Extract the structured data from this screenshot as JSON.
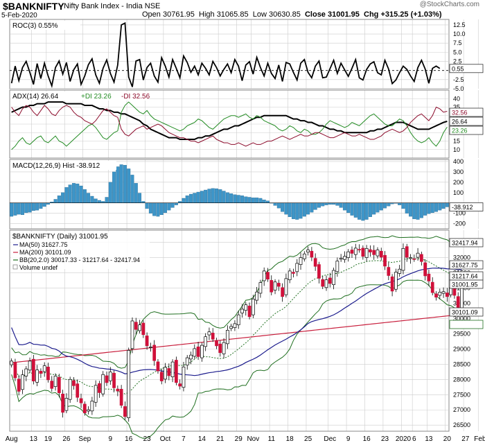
{
  "header": {
    "ticker": "$BANKNIFTY",
    "exchange": "Nifty Bank Index - India NSE",
    "date": "5-Feb-2020",
    "open_label": "Open",
    "open": "30761.95",
    "high_label": "High",
    "high": "31065.85",
    "low_label": "Low",
    "low": "30630.85",
    "close_label": "Close",
    "close": "31001.95",
    "chg_label": "Chg",
    "chg": "+315.25 (+1.03%)",
    "watermark": "@StockCharts.com"
  },
  "colors": {
    "roc": "#000000",
    "adx": "#000000",
    "plus_di": "#228B22",
    "minus_di": "#8B0A2A",
    "hist": "#3D95C8",
    "ma50": "#1A1A8C",
    "ma200": "#C81E3C",
    "bb": "#1E6E1E",
    "candle_up": "#ffffff",
    "candle_down": "#D0103A",
    "grid": "#cccccc",
    "highlight": "#1E6E1E"
  },
  "chart_data": [
    {
      "type": "line",
      "panel": "ROC",
      "title": "ROC(3) 0.55%",
      "ylim": [
        -5,
        14
      ],
      "yticks": [
        "12.5",
        "10.0",
        "7.5",
        "5.0",
        "2.5",
        "-2.5",
        "-5.0"
      ],
      "last_value_label": "0.55",
      "zero_line": true,
      "values": [
        -3.5,
        1.2,
        -2.8,
        0.8,
        2.5,
        -0.5,
        -3.8,
        1.9,
        -2.2,
        2.0,
        -1.5,
        -4.2,
        0.8,
        2.6,
        -1.0,
        2.2,
        -3.0,
        0.2,
        1.8,
        -3.8,
        -1.5,
        1.6,
        3.2,
        -1.2,
        -3.5,
        0.6,
        2.9,
        -0.8,
        -3.2,
        1.5,
        12.5,
        13.0,
        -1.8,
        -4.5,
        2.6,
        3.0,
        -2.6,
        0.8,
        2.0,
        -1.5,
        -3.2,
        3.5,
        1.2,
        -1.8,
        3.0,
        0.6,
        -2.0,
        4.0,
        2.2,
        -0.5,
        1.2,
        -1.2,
        2.0,
        0.6,
        -1.2,
        2.5,
        0.8,
        -1.5,
        0.3,
        1.8,
        -0.6,
        3.0,
        1.2,
        -2.8,
        1.5,
        2.4,
        -1.0,
        3.6,
        0.8,
        -1.5,
        2.0,
        -0.8,
        -2.2,
        1.5,
        -3.0,
        2.2,
        1.8,
        -0.5,
        -2.6,
        2.0,
        3.0,
        -0.5,
        -2.0,
        1.2,
        2.6,
        -2.0,
        -1.8,
        0.5,
        2.8,
        -0.8,
        2.0,
        0.2,
        -1.6,
        0.6,
        3.0,
        -2.0,
        -2.6,
        0.3,
        1.8,
        2.4,
        -0.6,
        -1.2,
        2.8,
        0.4,
        -3.6,
        -2.6,
        -0.6,
        1.2,
        0.3,
        -1.5,
        -3.0,
        0.8,
        2.8,
        0.4,
        -3.5,
        0.6,
        1.2,
        0.55
      ]
    },
    {
      "type": "line",
      "panel": "ADX",
      "title_adx": "ADX(14) 26.64",
      "title_plus": "+DI 23.26",
      "title_minus": "-DI 32.56",
      "ylim": [
        5,
        45
      ],
      "yticks": [
        "40",
        "35",
        "30",
        "25",
        "20",
        "15",
        "10"
      ],
      "last_labels": [
        "32.56",
        "26.64",
        "23.26"
      ],
      "series": [
        {
          "name": "ADX",
          "values": [
            32,
            33,
            34,
            35,
            35,
            36,
            36,
            37,
            37,
            37,
            38,
            38,
            38,
            38,
            38,
            37,
            37,
            37,
            37,
            37,
            36,
            36,
            36,
            35,
            34,
            34,
            33,
            33,
            32,
            32,
            31,
            31,
            30,
            29,
            28,
            27,
            25,
            24,
            22,
            21,
            20,
            19,
            18,
            17,
            17,
            17,
            16,
            16,
            16,
            16,
            16,
            17,
            17,
            18,
            18,
            19,
            20,
            21,
            22,
            22,
            23,
            24,
            24,
            25,
            26,
            27,
            28,
            29,
            29,
            30,
            30,
            30,
            30,
            30,
            30,
            30,
            29,
            28,
            28,
            27,
            27,
            26,
            26,
            25,
            24,
            24,
            23,
            22,
            22,
            21,
            21,
            20,
            20,
            20,
            20,
            20,
            20,
            20,
            21,
            21,
            22,
            22,
            23,
            24,
            25,
            26,
            26,
            26,
            25,
            24,
            23,
            22,
            22,
            22,
            22,
            23,
            24,
            25,
            26,
            26.64
          ]
        },
        {
          "name": "+DI",
          "values": [
            10,
            12,
            15,
            17,
            14,
            13,
            15,
            17,
            18,
            15,
            14,
            16,
            18,
            15,
            14,
            12,
            14,
            16,
            18,
            20,
            22,
            24,
            25,
            23,
            20,
            17,
            16,
            18,
            20,
            21,
            32,
            36,
            38,
            36,
            34,
            32,
            31,
            33,
            30,
            28,
            27,
            26,
            25,
            24,
            23,
            22,
            21,
            22,
            24,
            25,
            26,
            28,
            27,
            25,
            23,
            22,
            24,
            26,
            28,
            29,
            30,
            30,
            29,
            30,
            31,
            29,
            28,
            30,
            29,
            27,
            26,
            25,
            24,
            22,
            21,
            22,
            24,
            23,
            21,
            20,
            22,
            21,
            19,
            19,
            20,
            22,
            25,
            27,
            26,
            25,
            24,
            23,
            24,
            26,
            25,
            24,
            26,
            28,
            30,
            31,
            29,
            27,
            25,
            24,
            24,
            26,
            28,
            27,
            24,
            20,
            17,
            15,
            14,
            15,
            17,
            14,
            12,
            15,
            20,
            23.26
          ]
        },
        {
          "name": "-DI",
          "values": [
            35,
            32,
            30,
            34,
            36,
            35,
            32,
            30,
            33,
            36,
            34,
            31,
            30,
            33,
            35,
            36,
            35,
            32,
            30,
            29,
            27,
            26,
            25,
            27,
            30,
            33,
            34,
            32,
            30,
            29,
            22,
            19,
            18,
            20,
            22,
            23,
            24,
            22,
            23,
            24,
            25,
            24,
            22,
            20,
            19,
            18,
            17,
            17,
            16,
            15,
            15,
            14,
            15,
            16,
            17,
            18,
            16,
            15,
            14,
            14,
            13,
            13,
            14,
            13,
            12,
            13,
            14,
            13,
            13,
            14,
            15,
            15,
            16,
            17,
            18,
            17,
            16,
            17,
            18,
            19,
            18,
            18,
            19,
            20,
            20,
            19,
            18,
            17,
            17,
            18,
            19,
            20,
            19,
            18,
            18,
            19,
            18,
            17,
            16,
            16,
            17,
            18,
            20,
            21,
            22,
            21,
            20,
            21,
            23,
            26,
            28,
            30,
            31,
            29,
            27,
            30,
            35,
            34,
            32,
            32.56
          ]
        }
      ]
    },
    {
      "type": "bar",
      "panel": "MACD",
      "title": "MACD(12,26,9) Hist -38.912",
      "ylim": [
        -250,
        420
      ],
      "yticks": [
        "400",
        "300",
        "200",
        "100",
        "-100",
        "-200"
      ],
      "last_value_label": "-38.912",
      "values": [
        -130,
        -120,
        -110,
        -115,
        -95,
        -90,
        -75,
        -70,
        -55,
        -35,
        -15,
        10,
        35,
        70,
        100,
        150,
        175,
        190,
        185,
        165,
        130,
        95,
        65,
        40,
        25,
        15,
        55,
        200,
        300,
        350,
        370,
        365,
        330,
        270,
        190,
        95,
        15,
        -55,
        -100,
        -125,
        -130,
        -115,
        -95,
        -70,
        -45,
        -20,
        15,
        45,
        70,
        85,
        95,
        105,
        115,
        125,
        135,
        140,
        138,
        130,
        115,
        100,
        90,
        80,
        75,
        70,
        60,
        55,
        50,
        50,
        45,
        30,
        20,
        0,
        -25,
        -50,
        -85,
        -110,
        -135,
        -155,
        -160,
        -150,
        -130,
        -110,
        -90,
        -65,
        -45,
        -30,
        -20,
        -15,
        -15,
        -25,
        -45,
        -70,
        -95,
        -120,
        -140,
        -160,
        -170,
        -160,
        -135,
        -110,
        -90,
        -70,
        -50,
        -30,
        -10,
        -5,
        -20,
        -55,
        -100,
        -130,
        -155,
        -160,
        -145,
        -120,
        -105,
        -95,
        -85,
        -70,
        -55,
        -38.912
      ]
    },
    {
      "type": "candlestick",
      "panel": "Price",
      "title": "$BANKNIFTY (Daily) 31001.95",
      "legend": [
        "MA(50) 31627.75",
        "MA(200) 30101.09",
        "BB(20,2.0) 30017.33 - 31217.64 - 32417.94",
        "Volume undef"
      ],
      "ylim": [
        26300,
        32900
      ],
      "yticks": [
        "32500",
        "32000",
        "31500",
        "31000",
        "30500",
        "30000",
        "29500",
        "29000",
        "28500",
        "28000",
        "27500",
        "27000",
        "26500"
      ],
      "last_labels": [
        "32417.94",
        "31627.75",
        "31217.64",
        "31001.95",
        "30101.09"
      ],
      "highlight_label": "30017.33",
      "x_labels": [
        "Aug",
        "13",
        "19",
        "26",
        "Sep",
        "9",
        "16",
        "23",
        "Oct",
        "7",
        "14",
        "21",
        "29",
        "Nov",
        "11",
        "18",
        "25",
        "Dec",
        "9",
        "16",
        "23",
        "2020",
        "6",
        "13",
        "20",
        "27",
        "Feb"
      ],
      "x_label_index": [
        0,
        6,
        10,
        15,
        20,
        27,
        32,
        37,
        42,
        47,
        52,
        57,
        62,
        66,
        71,
        76,
        81,
        87,
        92,
        97,
        102,
        107,
        110,
        114,
        119,
        124,
        128
      ],
      "close": [
        28602,
        28052,
        27610,
        28150,
        28347,
        28603,
        27947,
        28312,
        28198,
        28449,
        27987,
        27704,
        28111,
        27562,
        26920,
        27383,
        28001,
        27795,
        27411,
        27230,
        26900,
        27005,
        27290,
        27805,
        27566,
        28161,
        27895,
        28245,
        27725,
        27620,
        27150,
        26781,
        28954,
        29920,
        29641,
        29790,
        29470,
        29103,
        29065,
        28617,
        28279,
        27950,
        28400,
        28123,
        28573,
        27897,
        27780,
        28410,
        28711,
        28799,
        29010,
        28750,
        29120,
        29402,
        29562,
        29320,
        29103,
        28879,
        29212,
        29614,
        29740,
        29830,
        30120,
        30307,
        30450,
        30060,
        30640,
        30870,
        31180,
        31560,
        31292,
        30870,
        31200,
        31055,
        30720,
        31310,
        31560,
        31480,
        31810,
        32000,
        32120,
        32250,
        32014,
        31712,
        31320,
        31055,
        31270,
        31150,
        31580,
        31887,
        31980,
        32040,
        32190,
        32140,
        32310,
        32250,
        32040,
        32300,
        32180,
        32096,
        32250,
        32014,
        31720,
        31410,
        30900,
        31520,
        31620,
        32300,
        32010,
        32000,
        31950,
        32145,
        31870,
        31400,
        31230,
        30850,
        30700,
        30865,
        30880,
        30720,
        31020,
        30761,
        30290,
        31001
      ]
    }
  ]
}
